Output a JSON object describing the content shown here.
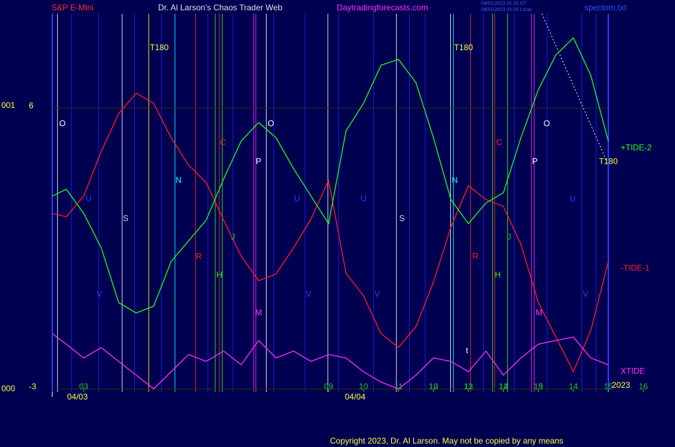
{
  "chart_data": {
    "type": "line",
    "title": "Dr. Al Larson's Chaos Trader Web",
    "symbol": "S&P E-Mini",
    "site": "Daytradingforecasts.com",
    "timestamps": [
      "04/01/2023 20:20 UT",
      "04/01/2023 15:20 Local"
    ],
    "file": "spectom.txt",
    "copyright": "Copyright 2023, Dr. Al Larson. May not be copied by any means",
    "year": "2023",
    "left_labels": [
      "001",
      "000"
    ],
    "xlim": [
      -0.9,
      15
    ],
    "ylim": [
      -3.09,
      9.02
    ],
    "yticks": [
      6,
      -3
    ],
    "xticks": [
      {
        "value": 0,
        "label": "03"
      },
      10,
      11,
      12,
      13,
      14,
      15,
      16,
      {
        "value": 7,
        "label": "09"
      },
      {
        "value": 8,
        "label": "10"
      },
      {
        "value": 9,
        "label": "11"
      },
      {
        "value": 10,
        "label": "12"
      },
      {
        "value": 11,
        "label": "13"
      },
      {
        "value": 12,
        "label": "14"
      },
      {
        "value": 13,
        "label": "15"
      }
    ],
    "date_labels": [
      {
        "x": -0.18,
        "label": "04/03"
      },
      {
        "x": 7.76,
        "label": "04/04"
      }
    ],
    "x": [
      -0.9,
      -0.5,
      0,
      0.5,
      1,
      1.5,
      2,
      2.5,
      3,
      3.5,
      4,
      4.5,
      5,
      5.5,
      6,
      6.5,
      7,
      7.5,
      8,
      8.5,
      9,
      9.5,
      10,
      10.5,
      11,
      11.5,
      12,
      12.5,
      13,
      13.5,
      14,
      14.5,
      15
    ],
    "series": [
      {
        "name": "-TIDE-1",
        "color": "#ff2020",
        "values": [
          2.63,
          2.52,
          3.18,
          4.61,
          5.82,
          6.48,
          6.15,
          5.05,
          4.17,
          3.62,
          2.41,
          1.26,
          0.47,
          0.69,
          1.53,
          2.45,
          3.69,
          0.71,
          -0.01,
          -1.22,
          -1.66,
          -1.0,
          0.43,
          2.19,
          3.51,
          3.07,
          2.85,
          1.64,
          -0.23,
          -1.33,
          -2.44,
          -1.11,
          1.09
        ]
      },
      {
        "name": "+TIDE-2",
        "color": "#20ff20",
        "values": [
          3.18,
          3.4,
          2.63,
          1.53,
          -0.23,
          -0.56,
          -0.34,
          1.09,
          1.75,
          2.41,
          3.73,
          4.94,
          5.54,
          5.05,
          4.06,
          3.18,
          2.3,
          5.27,
          6.15,
          7.37,
          7.56,
          6.81,
          5.05,
          3.07,
          2.3,
          2.96,
          3.29,
          5.05,
          6.59,
          7.7,
          8.25,
          7.04,
          4.94
        ]
      },
      {
        "name": "XTIDE",
        "color": "#ff30ff",
        "values": [
          -1.22,
          -1.56,
          -2.0,
          -1.67,
          -2.11,
          -2.55,
          -2.99,
          -2.44,
          -1.89,
          -2.11,
          -1.78,
          -2.22,
          -1.44,
          -2.0,
          -1.78,
          -2.11,
          -1.89,
          -2.0,
          -2.44,
          -2.77,
          -2.99,
          -2.55,
          -2.0,
          -2.11,
          -2.44,
          -1.78,
          -2.55,
          -2.0,
          -1.56,
          -1.44,
          -1.33,
          -2.0,
          -2.22
        ]
      }
    ],
    "vlines": [
      {
        "x": -0.75,
        "color": "#ffffff"
      },
      {
        "x": 1.1,
        "color": "#ffffff"
      },
      {
        "x": 1.86,
        "color": "#ffff00"
      },
      {
        "x": 2.61,
        "color": "#00ffff"
      },
      {
        "x": 3.2,
        "color": "#ff2020"
      },
      {
        "x": 3.76,
        "color": "#20ff20"
      },
      {
        "x": 3.88,
        "color": "#ff2020"
      },
      {
        "x": 3.96,
        "color": "#20ff20"
      },
      {
        "x": 4.86,
        "color": "#ff30ff"
      },
      {
        "x": 4.92,
        "color": "#ff30ff"
      },
      {
        "x": 5.22,
        "color": "#ffffff"
      },
      {
        "x": 6.98,
        "color": "#ffffff"
      },
      {
        "x": 8.94,
        "color": "#ffffff"
      },
      {
        "x": 10.49,
        "color": "#ffffff"
      },
      {
        "x": 10.57,
        "color": "#00ffff"
      },
      {
        "x": 11.06,
        "color": "#ff2020"
      },
      {
        "x": 11.69,
        "color": "#20ff20"
      },
      {
        "x": 11.75,
        "color": "#ff2020"
      },
      {
        "x": 12.12,
        "color": "#20ff20"
      },
      {
        "x": 12.8,
        "color": "#ff30ff"
      },
      {
        "x": 12.88,
        "color": "#ff30ff"
      },
      {
        "x": 14.65,
        "color": "#2020ff"
      },
      {
        "x": -0.35,
        "color": "#2020ff"
      },
      {
        "x": 0.43,
        "color": "#2020ff"
      },
      {
        "x": 1.45,
        "color": "#2020ff"
      },
      {
        "x": 2.22,
        "color": "#2020ff"
      },
      {
        "x": 3.55,
        "color": "#2020ff"
      },
      {
        "x": 4.27,
        "color": "#2020ff"
      },
      {
        "x": 5.43,
        "color": "#2020ff"
      },
      {
        "x": 6.33,
        "color": "#2020ff"
      },
      {
        "x": 7.29,
        "color": "#2020ff"
      },
      {
        "x": 8.29,
        "color": "#2020ff"
      },
      {
        "x": 9.31,
        "color": "#2020ff"
      },
      {
        "x": 9.76,
        "color": "#2020ff"
      },
      {
        "x": 11.43,
        "color": "#2020ff"
      },
      {
        "x": 12.31,
        "color": "#2020ff"
      },
      {
        "x": 13.25,
        "color": "#2020ff"
      },
      {
        "x": 14.24,
        "color": "#2020ff"
      }
    ],
    "annotations": [
      {
        "x": -0.61,
        "y": 5.49,
        "text": "O",
        "color": "#ffffff"
      },
      {
        "x": 0.14,
        "y": 3.09,
        "text": "U",
        "color": "#2040ff"
      },
      {
        "x": 1.2,
        "y": 2.45,
        "text": "S",
        "color": "#d0d0ff"
      },
      {
        "x": 0.45,
        "y": 0.03,
        "text": "V",
        "color": "#2040ff"
      },
      {
        "x": 2.16,
        "y": 7.92,
        "text": "T180",
        "color": "#ffff40"
      },
      {
        "x": 2.71,
        "y": 3.67,
        "text": "N",
        "color": "#00ffff"
      },
      {
        "x": 3.29,
        "y": 1.24,
        "text": "R",
        "color": "#ff2020"
      },
      {
        "x": 3.98,
        "y": 4.88,
        "text": "C",
        "color": "#ff2020"
      },
      {
        "x": 3.88,
        "y": 0.65,
        "text": "H",
        "color": "#20ff20"
      },
      {
        "x": 4.27,
        "y": 1.86,
        "text": "J",
        "color": "#20c020"
      },
      {
        "x": 5.35,
        "y": 5.49,
        "text": "O",
        "color": "#ffffff"
      },
      {
        "x": 5.0,
        "y": 4.28,
        "text": "P",
        "color": "#ffffff"
      },
      {
        "x": 5.0,
        "y": -0.56,
        "text": "M",
        "color": "#ff30ff"
      },
      {
        "x": 6.1,
        "y": 3.09,
        "text": "U",
        "color": "#2040ff"
      },
      {
        "x": 6.43,
        "y": 0.03,
        "text": "V",
        "color": "#2040ff"
      },
      {
        "x": 8.0,
        "y": 3.09,
        "text": "U",
        "color": "#2040ff"
      },
      {
        "x": 9.1,
        "y": 2.45,
        "text": "S",
        "color": "#d0d0ff"
      },
      {
        "x": 8.39,
        "y": 0.03,
        "text": "V",
        "color": "#2040ff"
      },
      {
        "x": 10.86,
        "y": 7.92,
        "text": "T180",
        "color": "#ffff40"
      },
      {
        "x": 10.61,
        "y": 3.67,
        "text": "N",
        "color": "#00ffff"
      },
      {
        "x": 11.2,
        "y": 1.24,
        "text": "R",
        "color": "#ff2020"
      },
      {
        "x": 11.88,
        "y": 4.88,
        "text": "C",
        "color": "#ff2020"
      },
      {
        "x": 11.84,
        "y": 0.65,
        "text": "H",
        "color": "#20ff20"
      },
      {
        "x": 12.16,
        "y": 1.86,
        "text": "J",
        "color": "#20c020"
      },
      {
        "x": 13.24,
        "y": 5.49,
        "text": "O",
        "color": "#ffffff"
      },
      {
        "x": 12.9,
        "y": 4.28,
        "text": "P",
        "color": "#ffffff"
      },
      {
        "x": 13.02,
        "y": -0.56,
        "text": "M",
        "color": "#ff30ff"
      },
      {
        "x": 13.98,
        "y": 3.09,
        "text": "U",
        "color": "#2040ff"
      },
      {
        "x": 14.35,
        "y": 0.03,
        "text": "V",
        "color": "#2040ff"
      },
      {
        "x": 10.96,
        "y": -1.78,
        "text": "t",
        "color": "#ffffff"
      },
      {
        "x": 15.0,
        "y": 4.28,
        "text": "T180",
        "color": "#ffff40"
      }
    ],
    "trend": {
      "x": [
        13.1,
        14.96
      ],
      "y": [
        9.02,
        4.28
      ],
      "color": "#ffffff"
    }
  }
}
